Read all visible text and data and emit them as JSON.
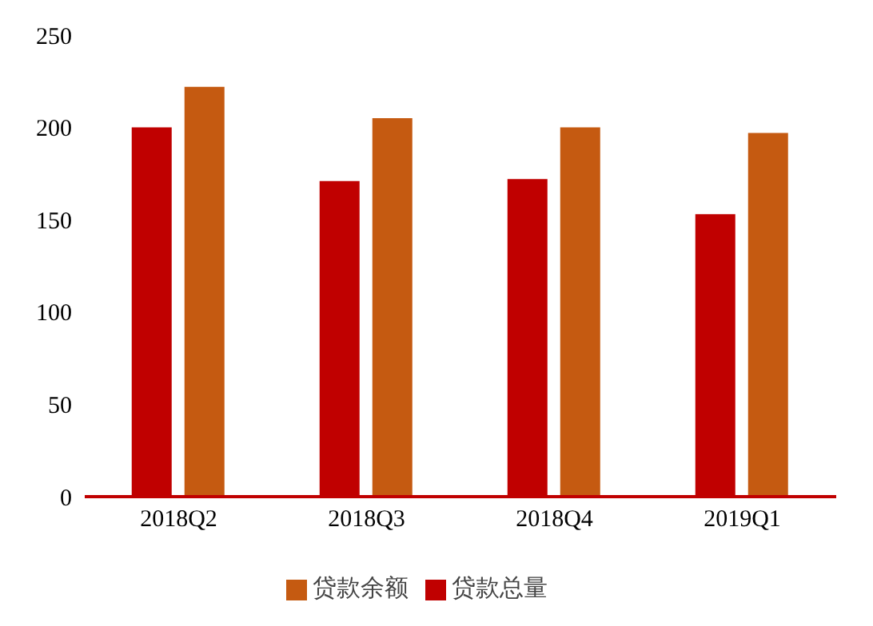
{
  "chart_data": {
    "type": "bar",
    "categories": [
      "2018Q2",
      "2018Q3",
      "2018Q4",
      "2019Q1"
    ],
    "series": [
      {
        "name": "贷款总量",
        "color": "#c00000",
        "values": [
          200,
          171,
          172,
          153
        ]
      },
      {
        "name": "贷款余额",
        "color": "#c55a11",
        "values": [
          222,
          205,
          200,
          197
        ]
      }
    ],
    "ylim": [
      0,
      250
    ],
    "yticks": [
      0,
      50,
      100,
      150,
      200,
      250
    ],
    "grid": false,
    "legend": "bottom"
  }
}
